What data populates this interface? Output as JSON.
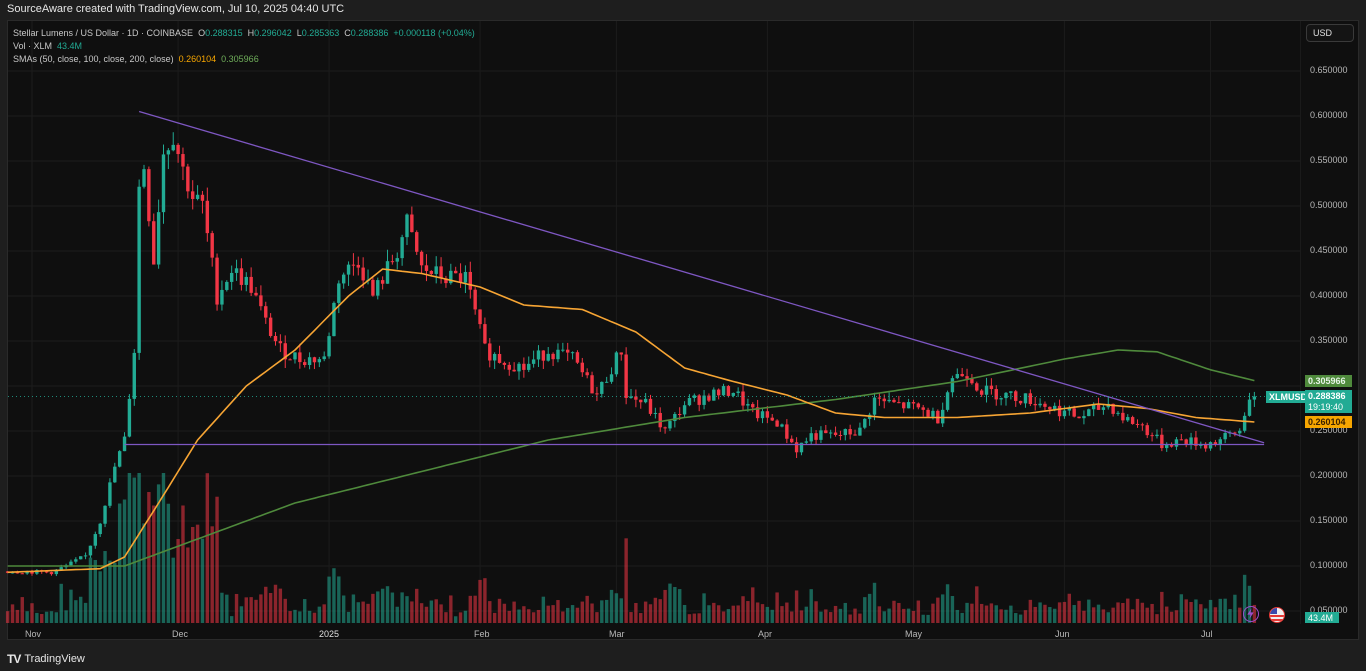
{
  "watermark": "SourceAware created with TradingView.com, Jul 10, 2025 04:40 UTC",
  "legend": {
    "symbol_line": "Stellar Lumens / US Dollar · 1D · COINBASE",
    "o_label": "O",
    "o": "0.288315",
    "h_label": "H",
    "h": "0.296042",
    "l_label": "L",
    "l": "0.285363",
    "c_label": "C",
    "c": "0.288386",
    "change": "+0.000118 (+0.04%)",
    "vol_label": "Vol · XLM",
    "vol": "43.4M",
    "sma_label": "SMAs (50, close, 100, close, 200, close)",
    "sma50": "0.260104",
    "sma200": "0.305966"
  },
  "currency_button": "USD",
  "price_axis": {
    "ticks": [
      "0.650000",
      "0.600000",
      "0.550000",
      "0.500000",
      "0.450000",
      "0.400000",
      "0.350000",
      "0.250000",
      "0.200000",
      "0.150000",
      "0.100000",
      "0.050000"
    ],
    "tag_sma200": "0.305966",
    "tag_symbol": "XLMUSD",
    "tag_price": "0.288386",
    "tag_countdown": "19:19:40",
    "tag_sma50": "0.260104",
    "tag_volume": "43.4M"
  },
  "time_axis": [
    "Nov",
    "Dec",
    "2025",
    "Feb",
    "Mar",
    "Apr",
    "May",
    "Jun",
    "Jul"
  ],
  "footer": {
    "logo": "TV",
    "brand": "TradingView"
  },
  "colors": {
    "up": "#22ab94",
    "down": "#f23645",
    "sma50": "#f7a534",
    "sma200": "#4f8a3c",
    "trendline": "#7e57c2",
    "background": "#0f0f0f",
    "grid": "#1c1c1c"
  },
  "chart_data": {
    "type": "candlestick",
    "title": "Stellar Lumens / US Dollar · 1D · COINBASE",
    "ylabel": "USD",
    "ylim": [
      0.03,
      0.67
    ],
    "x_ticks": [
      "Nov",
      "Dec",
      "2025",
      "Feb",
      "Mar",
      "Apr",
      "May",
      "Jun",
      "Jul"
    ],
    "start_date": "2024-10-27",
    "end_date": "2025-07-10",
    "closes_keypoints": [
      [
        "2024-10-27",
        0.094
      ],
      [
        "2024-11-05",
        0.093
      ],
      [
        "2024-11-08",
        0.1
      ],
      [
        "2024-11-12",
        0.111
      ],
      [
        "2024-11-15",
        0.15
      ],
      [
        "2024-11-18",
        0.21
      ],
      [
        "2024-11-20",
        0.24
      ],
      [
        "2024-11-22",
        0.34
      ],
      [
        "2024-11-23",
        0.52
      ],
      [
        "2024-11-24",
        0.545
      ],
      [
        "2024-11-26",
        0.44
      ],
      [
        "2024-11-28",
        0.56
      ],
      [
        "2024-11-30",
        0.58
      ],
      [
        "2024-12-02",
        0.54
      ],
      [
        "2024-12-04",
        0.51
      ],
      [
        "2024-12-06",
        0.5
      ],
      [
        "2024-12-09",
        0.4
      ],
      [
        "2024-12-12",
        0.43
      ],
      [
        "2024-12-16",
        0.41
      ],
      [
        "2024-12-19",
        0.37
      ],
      [
        "2024-12-22",
        0.34
      ],
      [
        "2024-12-26",
        0.33
      ],
      [
        "2024-12-31",
        0.33
      ],
      [
        "2025-01-03",
        0.42
      ],
      [
        "2025-01-07",
        0.44
      ],
      [
        "2025-01-10",
        0.4
      ],
      [
        "2025-01-15",
        0.45
      ],
      [
        "2025-01-17",
        0.48
      ],
      [
        "2025-01-20",
        0.43
      ],
      [
        "2025-01-25",
        0.42
      ],
      [
        "2025-01-29",
        0.42
      ],
      [
        "2025-02-02",
        0.34
      ],
      [
        "2025-02-05",
        0.33
      ],
      [
        "2025-02-10",
        0.32
      ],
      [
        "2025-02-15",
        0.34
      ],
      [
        "2025-02-20",
        0.33
      ],
      [
        "2025-02-25",
        0.29
      ],
      [
        "2025-03-02",
        0.34
      ],
      [
        "2025-03-03",
        0.29
      ],
      [
        "2025-03-07",
        0.28
      ],
      [
        "2025-03-11",
        0.25
      ],
      [
        "2025-03-15",
        0.28
      ],
      [
        "2025-03-20",
        0.29
      ],
      [
        "2025-03-25",
        0.295
      ],
      [
        "2025-03-29",
        0.27
      ],
      [
        "2025-04-03",
        0.26
      ],
      [
        "2025-04-07",
        0.23
      ],
      [
        "2025-04-10",
        0.245
      ],
      [
        "2025-04-15",
        0.245
      ],
      [
        "2025-04-20",
        0.25
      ],
      [
        "2025-04-23",
        0.285
      ],
      [
        "2025-04-27",
        0.28
      ],
      [
        "2025-05-02",
        0.275
      ],
      [
        "2025-05-06",
        0.265
      ],
      [
        "2025-05-09",
        0.31
      ],
      [
        "2025-05-12",
        0.315
      ],
      [
        "2025-05-15",
        0.295
      ],
      [
        "2025-05-20",
        0.29
      ],
      [
        "2025-05-25",
        0.285
      ],
      [
        "2025-05-30",
        0.275
      ],
      [
        "2025-06-04",
        0.265
      ],
      [
        "2025-06-10",
        0.28
      ],
      [
        "2025-06-13",
        0.265
      ],
      [
        "2025-06-17",
        0.255
      ],
      [
        "2025-06-21",
        0.235
      ],
      [
        "2025-06-25",
        0.24
      ],
      [
        "2025-06-30",
        0.235
      ],
      [
        "2025-07-03",
        0.24
      ],
      [
        "2025-07-07",
        0.25
      ],
      [
        "2025-07-09",
        0.29
      ],
      [
        "2025-07-10",
        0.288
      ]
    ],
    "sma50_keypoints": [
      [
        "2024-10-27",
        0.093
      ],
      [
        "2024-11-15",
        0.097
      ],
      [
        "2024-11-20",
        0.11
      ],
      [
        "2024-11-27",
        0.17
      ],
      [
        "2024-12-05",
        0.24
      ],
      [
        "2024-12-15",
        0.3
      ],
      [
        "2024-12-25",
        0.34
      ],
      [
        "2025-01-05",
        0.4
      ],
      [
        "2025-01-12",
        0.43
      ],
      [
        "2025-01-20",
        0.425
      ],
      [
        "2025-02-01",
        0.41
      ],
      [
        "2025-02-10",
        0.39
      ],
      [
        "2025-02-22",
        0.385
      ],
      [
        "2025-03-05",
        0.36
      ],
      [
        "2025-03-15",
        0.32
      ],
      [
        "2025-03-25",
        0.305
      ],
      [
        "2025-04-05",
        0.29
      ],
      [
        "2025-04-15",
        0.27
      ],
      [
        "2025-04-25",
        0.265
      ],
      [
        "2025-05-10",
        0.265
      ],
      [
        "2025-05-25",
        0.27
      ],
      [
        "2025-06-08",
        0.28
      ],
      [
        "2025-06-18",
        0.275
      ],
      [
        "2025-06-28",
        0.265
      ],
      [
        "2025-07-10",
        0.26
      ]
    ],
    "sma200_keypoints": [
      [
        "2024-10-27",
        0.1
      ],
      [
        "2024-11-20",
        0.1
      ],
      [
        "2024-12-05",
        0.13
      ],
      [
        "2024-12-25",
        0.17
      ],
      [
        "2025-01-20",
        0.205
      ],
      [
        "2025-02-15",
        0.24
      ],
      [
        "2025-03-15",
        0.265
      ],
      [
        "2025-04-15",
        0.285
      ],
      [
        "2025-05-10",
        0.305
      ],
      [
        "2025-06-01",
        0.33
      ],
      [
        "2025-06-12",
        0.34
      ],
      [
        "2025-06-20",
        0.338
      ],
      [
        "2025-07-01",
        0.318
      ],
      [
        "2025-07-10",
        0.306
      ]
    ],
    "trendlines": [
      {
        "name": "descending-resistance",
        "from": [
          "2024-11-23",
          0.605
        ],
        "to": [
          "2025-07-12",
          0.237
        ]
      },
      {
        "name": "horizontal-support",
        "from": [
          "2024-11-20",
          0.235
        ],
        "to": [
          "2025-07-12",
          0.235
        ]
      }
    ],
    "last": {
      "open": 0.288315,
      "high": 0.296042,
      "low": 0.285363,
      "close": 0.288386,
      "volume": "43.4M"
    }
  }
}
